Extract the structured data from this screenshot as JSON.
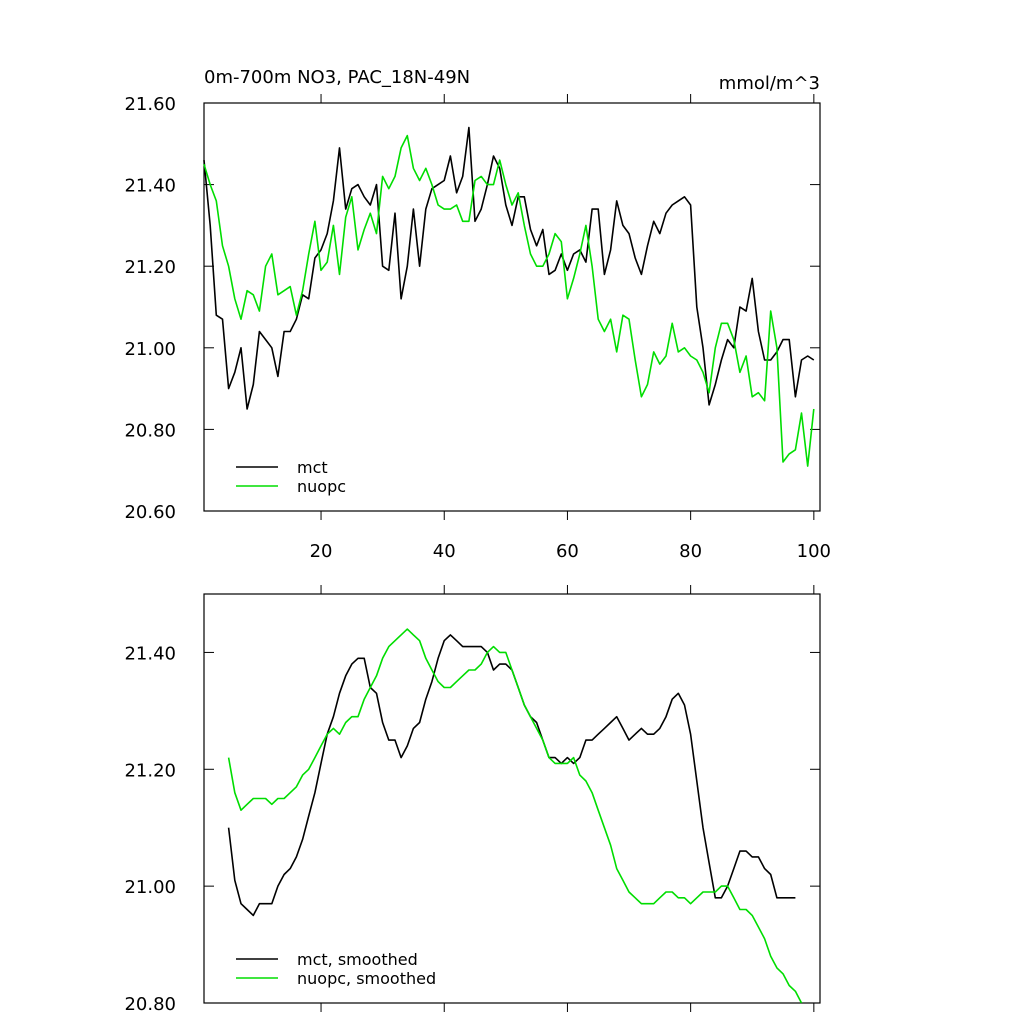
{
  "chart_data": [
    {
      "type": "line",
      "title": "0m-700m NO3, PAC_18N-49N",
      "units": "mmol/m^3",
      "legend": "lower left",
      "x": [
        1,
        2,
        3,
        4,
        5,
        6,
        7,
        8,
        9,
        10,
        11,
        12,
        13,
        14,
        15,
        16,
        17,
        18,
        19,
        20,
        21,
        22,
        23,
        24,
        25,
        26,
        27,
        28,
        29,
        30,
        31,
        32,
        33,
        34,
        35,
        36,
        37,
        38,
        39,
        40,
        41,
        42,
        43,
        44,
        45,
        46,
        47,
        48,
        49,
        50,
        51,
        52,
        53,
        54,
        55,
        56,
        57,
        58,
        59,
        60,
        61,
        62,
        63,
        64,
        65,
        66,
        67,
        68,
        69,
        70,
        71,
        72,
        73,
        74,
        75,
        76,
        77,
        78,
        79,
        80,
        81,
        82,
        83,
        84,
        85,
        86,
        87,
        88,
        89,
        90,
        91,
        92,
        93,
        94,
        95,
        96,
        97,
        98,
        99,
        100
      ],
      "series": [
        {
          "name": "mct",
          "color": "#000000",
          "values": [
            21.46,
            21.3,
            21.08,
            21.07,
            20.9,
            20.94,
            21.0,
            20.85,
            20.91,
            21.04,
            21.02,
            21.0,
            20.93,
            21.04,
            21.04,
            21.07,
            21.13,
            21.12,
            21.22,
            21.24,
            21.28,
            21.36,
            21.49,
            21.34,
            21.39,
            21.4,
            21.37,
            21.35,
            21.4,
            21.2,
            21.19,
            21.33,
            21.12,
            21.2,
            21.34,
            21.2,
            21.34,
            21.39,
            21.4,
            21.41,
            21.47,
            21.38,
            21.42,
            21.54,
            21.31,
            21.34,
            21.4,
            21.47,
            21.44,
            21.35,
            21.3,
            21.37,
            21.37,
            21.29,
            21.25,
            21.29,
            21.18,
            21.19,
            21.23,
            21.19,
            21.23,
            21.24,
            21.21,
            21.34,
            21.34,
            21.18,
            21.24,
            21.36,
            21.3,
            21.28,
            21.22,
            21.18,
            21.25,
            21.31,
            21.28,
            21.33,
            21.35,
            21.36,
            21.37,
            21.35,
            21.1,
            21.0,
            20.86,
            20.91,
            20.97,
            21.02,
            21.0,
            21.1,
            21.09,
            21.17,
            21.04,
            20.97,
            20.97,
            20.99,
            21.02,
            21.02,
            20.88,
            20.97,
            20.98,
            20.97
          ]
        },
        {
          "name": "nuopc",
          "color": "#00dd00",
          "values": [
            21.45,
            21.4,
            21.36,
            21.25,
            21.2,
            21.12,
            21.07,
            21.14,
            21.13,
            21.09,
            21.2,
            21.23,
            21.13,
            21.14,
            21.15,
            21.08,
            21.14,
            21.23,
            21.31,
            21.19,
            21.21,
            21.3,
            21.18,
            21.32,
            21.37,
            21.24,
            21.29,
            21.33,
            21.28,
            21.42,
            21.39,
            21.42,
            21.49,
            21.52,
            21.44,
            21.41,
            21.44,
            21.4,
            21.35,
            21.34,
            21.34,
            21.35,
            21.31,
            21.31,
            21.41,
            21.42,
            21.4,
            21.4,
            21.46,
            21.4,
            21.35,
            21.38,
            21.3,
            21.23,
            21.2,
            21.2,
            21.23,
            21.28,
            21.26,
            21.12,
            21.17,
            21.23,
            21.3,
            21.2,
            21.07,
            21.04,
            21.07,
            20.99,
            21.08,
            21.07,
            20.97,
            20.88,
            20.91,
            20.99,
            20.96,
            20.98,
            21.06,
            20.99,
            21.0,
            20.98,
            20.97,
            20.94,
            20.89,
            21.0,
            21.06,
            21.06,
            21.02,
            20.94,
            20.98,
            20.88,
            20.89,
            20.87,
            21.09,
            21.0,
            20.72,
            20.74,
            20.75,
            20.84,
            20.71,
            20.85
          ]
        }
      ],
      "xlim": [
        1,
        101
      ],
      "xticks": [
        20,
        40,
        60,
        80,
        100
      ],
      "ylim": [
        20.6,
        21.6
      ],
      "yticks": [
        {
          "value": 20.6,
          "label": "20.60"
        },
        {
          "value": 20.8,
          "label": "20.80"
        },
        {
          "value": 21.0,
          "label": "21.00"
        },
        {
          "value": 21.2,
          "label": "21.20"
        },
        {
          "value": 21.4,
          "label": "21.40"
        },
        {
          "value": 21.6,
          "label": "21.60"
        }
      ]
    },
    {
      "type": "line",
      "legend": "lower left",
      "xtick_labels": false,
      "x": [
        5,
        6,
        7,
        8,
        9,
        10,
        11,
        12,
        13,
        14,
        15,
        16,
        17,
        18,
        19,
        20,
        21,
        22,
        23,
        24,
        25,
        26,
        27,
        28,
        29,
        30,
        31,
        32,
        33,
        34,
        35,
        36,
        37,
        38,
        39,
        40,
        41,
        42,
        43,
        44,
        45,
        46,
        47,
        48,
        49,
        50,
        51,
        52,
        53,
        54,
        55,
        56,
        57,
        58,
        59,
        60,
        61,
        62,
        63,
        64,
        65,
        66,
        67,
        68,
        69,
        70,
        71,
        72,
        73,
        74,
        75,
        76,
        77,
        78,
        79,
        80,
        81,
        82,
        83,
        84,
        85,
        86,
        87,
        88,
        89,
        90,
        91,
        92,
        93,
        94,
        95,
        96,
        97,
        98
      ],
      "series": [
        {
          "name": "mct, smoothed",
          "color": "#000000",
          "values": [
            21.1,
            21.01,
            20.97,
            20.96,
            20.95,
            20.97,
            20.97,
            20.97,
            21.0,
            21.02,
            21.03,
            21.05,
            21.08,
            21.12,
            21.16,
            21.21,
            21.26,
            21.29,
            21.33,
            21.36,
            21.38,
            21.39,
            21.39,
            21.34,
            21.33,
            21.28,
            21.25,
            21.25,
            21.22,
            21.24,
            21.27,
            21.28,
            21.32,
            21.35,
            21.39,
            21.42,
            21.43,
            21.42,
            21.41,
            21.41,
            21.41,
            21.41,
            21.4,
            21.37,
            21.38,
            21.38,
            21.37,
            21.34,
            21.31,
            21.29,
            21.28,
            21.25,
            21.22,
            21.22,
            21.21,
            21.22,
            21.21,
            21.22,
            21.25,
            21.25,
            21.26,
            21.27,
            21.28,
            21.29,
            21.27,
            21.25,
            21.26,
            21.27,
            21.26,
            21.26,
            21.27,
            21.29,
            21.32,
            21.33,
            21.31,
            21.26,
            21.18,
            21.1,
            21.04,
            20.98,
            20.98,
            21.0,
            21.03,
            21.06,
            21.06,
            21.05,
            21.05,
            21.03,
            21.02,
            20.98,
            20.98,
            20.98,
            20.98,
            null
          ]
        },
        {
          "name": "nuopc, smoothed",
          "color": "#00dd00",
          "values": [
            21.22,
            21.16,
            21.13,
            21.14,
            21.15,
            21.15,
            21.15,
            21.14,
            21.15,
            21.15,
            21.16,
            21.17,
            21.19,
            21.2,
            21.22,
            21.24,
            21.26,
            21.27,
            21.26,
            21.28,
            21.29,
            21.29,
            21.32,
            21.34,
            21.36,
            21.39,
            21.41,
            21.42,
            21.43,
            21.44,
            21.43,
            21.42,
            21.39,
            21.37,
            21.35,
            21.34,
            21.34,
            21.35,
            21.36,
            21.37,
            21.37,
            21.38,
            21.4,
            21.41,
            21.4,
            21.4,
            21.37,
            21.34,
            21.31,
            21.29,
            21.27,
            21.25,
            21.22,
            21.21,
            21.21,
            21.21,
            21.22,
            21.19,
            21.18,
            21.16,
            21.13,
            21.1,
            21.07,
            21.03,
            21.01,
            20.99,
            20.98,
            20.97,
            20.97,
            20.97,
            20.98,
            20.99,
            20.99,
            20.98,
            20.98,
            20.97,
            20.98,
            20.99,
            20.99,
            20.99,
            21.0,
            21.0,
            20.98,
            20.96,
            20.96,
            20.95,
            20.93,
            20.91,
            20.88,
            20.86,
            20.85,
            20.83,
            20.82,
            20.8
          ]
        }
      ],
      "xlim": [
        1,
        101
      ],
      "xticks": [
        20,
        40,
        60,
        80,
        100
      ],
      "ylim": [
        20.8,
        21.5
      ],
      "yticks": [
        {
          "value": 20.8,
          "label": "20.80"
        },
        {
          "value": 21.0,
          "label": "21.00"
        },
        {
          "value": 21.2,
          "label": "21.20"
        },
        {
          "value": 21.4,
          "label": "21.40"
        }
      ]
    }
  ]
}
